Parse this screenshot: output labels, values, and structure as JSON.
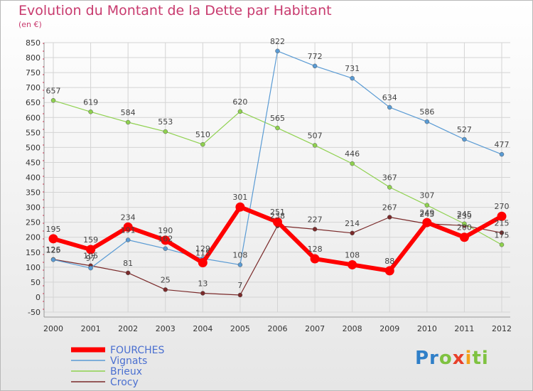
{
  "title": "Evolution du Montant de la Dette par Habitant",
  "subtitle": "(en €)",
  "logo": "Proxiti",
  "chart_data": {
    "type": "line",
    "title": "Evolution du Montant de la Dette par Habitant",
    "ylabel": "(en €)",
    "x": [
      "2000",
      "2001",
      "2002",
      "2003",
      "2004",
      "2005",
      "2006",
      "2007",
      "2008",
      "2009",
      "2010",
      "2011",
      "2012"
    ],
    "ylim": [
      -50,
      850
    ],
    "yticks": [
      -50,
      0,
      50,
      100,
      150,
      200,
      250,
      300,
      350,
      400,
      450,
      500,
      550,
      600,
      650,
      700,
      750,
      800,
      850
    ],
    "grid": true,
    "legend_position": "bottom-left",
    "series": [
      {
        "name": "FOURCHES",
        "color": "#ff0000",
        "values": [
          195,
          159,
          234,
          190,
          115,
          301,
          251,
          128,
          108,
          88,
          249,
          200,
          270
        ]
      },
      {
        "name": "Vignats",
        "color": "#5a9bd4",
        "values": [
          125,
          97,
          191,
          162,
          129,
          108,
          822,
          772,
          731,
          634,
          586,
          527,
          477
        ]
      },
      {
        "name": "Brieux",
        "color": "#8fd14f",
        "values": [
          657,
          619,
          584,
          553,
          510,
          620,
          565,
          507,
          446,
          367,
          307,
          245,
          175
        ]
      },
      {
        "name": "Crocy",
        "color": "#7a2a2a",
        "values": [
          126,
          105,
          81,
          25,
          13,
          7,
          238,
          227,
          214,
          267,
          245,
          239,
          215
        ]
      }
    ]
  }
}
